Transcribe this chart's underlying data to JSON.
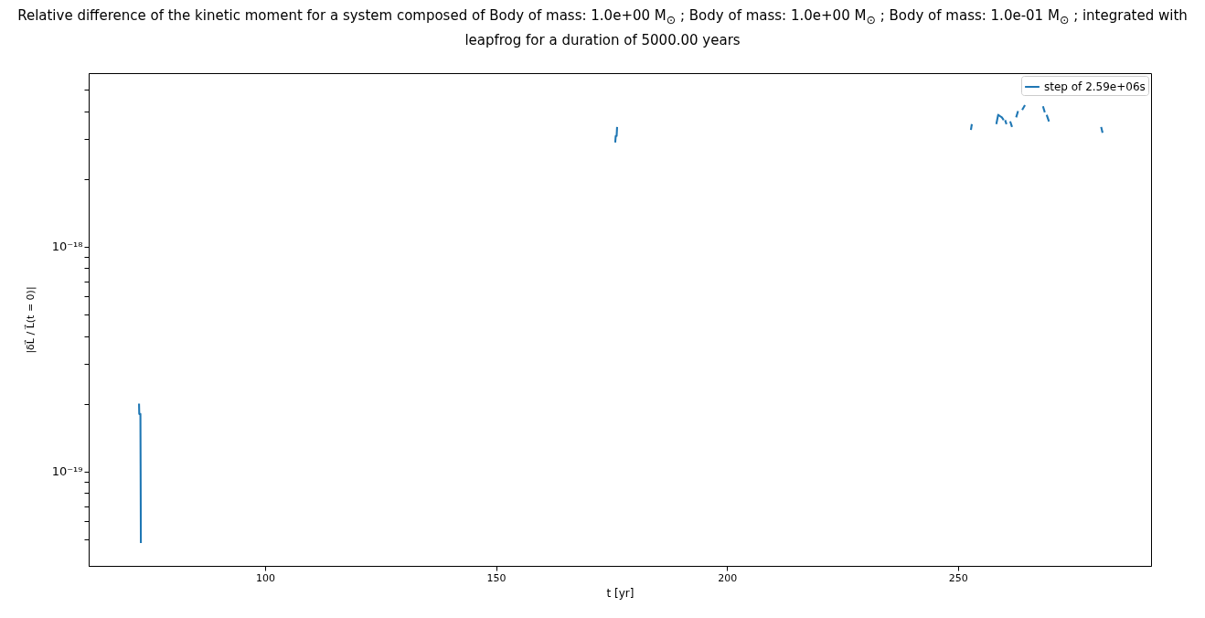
{
  "chart_data": {
    "type": "line",
    "title": "Relative difference of the kinetic moment for a system composed of Body of mass: 1.0e+00 M$_{⊙}$ ; Body of mass: 1.0e+00 M$_{⊙}$ ; Body of mass: 1.0e-01 M$_{⊙}$ ; integrated with leapfrog for a duration of 5000.00 years",
    "xlabel": "t [yr]",
    "ylabel": "|δL⃗ / L⃗(t = 0)|",
    "series": [
      {
        "name": "step of 2.59e+06s",
        "color": "#1f77b4",
        "x": [
          72.7,
          72.75,
          73.0,
          73.1,
          120,
          175.8,
          175.9,
          176.1,
          176.2,
          210,
          252.8,
          253.0,
          255,
          258.3,
          258.7,
          259.1,
          259.5,
          259.9,
          260.05,
          260.2,
          260.5,
          261.0,
          261.3,
          261.7,
          262.2,
          262.6,
          263.0,
          263.6,
          263.9,
          264.5,
          265,
          268.4,
          268.8,
          269.1,
          269.2,
          269.7,
          275,
          281.0,
          281.3
        ],
        "values": [
          2e-19,
          1.8e-19,
          1.8e-19,
          4.8e-20,
          null,
          2.9e-18,
          3.1e-18,
          3.1e-18,
          3.4e-18,
          null,
          3.3e-18,
          3.5e-18,
          null,
          3.5e-18,
          3.85e-18,
          3.8e-18,
          3.75e-18,
          3.65e-18,
          null,
          3.65e-18,
          3.5e-18,
          null,
          3.6e-18,
          3.4e-18,
          null,
          3.75e-18,
          4e-18,
          null,
          4.05e-18,
          4.25e-18,
          null,
          4.2e-18,
          3.95e-18,
          null,
          3.85e-18,
          3.6e-18,
          null,
          3.4e-18,
          3.2e-18
        ]
      }
    ],
    "xlim": [
      61.8,
      291.8
    ],
    "xticks": [
      100,
      150,
      200,
      250
    ],
    "ylim": [
      3.8e-20,
      5.9e-18
    ],
    "log": "y",
    "yticks": [
      {
        "value": 5e-20,
        "label": null
      },
      {
        "value": 6e-20,
        "label": null
      },
      {
        "value": 7e-20,
        "label": null
      },
      {
        "value": 8e-20,
        "label": null
      },
      {
        "value": 9e-20,
        "label": null
      },
      {
        "value": 1e-19,
        "label": "10⁻¹⁹"
      },
      {
        "value": 2e-19,
        "label": null
      },
      {
        "value": 3e-19,
        "label": null
      },
      {
        "value": 4e-19,
        "label": null
      },
      {
        "value": 5e-19,
        "label": null
      },
      {
        "value": 6e-19,
        "label": null
      },
      {
        "value": 7e-19,
        "label": null
      },
      {
        "value": 8e-19,
        "label": null
      },
      {
        "value": 9e-19,
        "label": null
      },
      {
        "value": 1e-18,
        "label": "10⁻¹⁸"
      },
      {
        "value": 2e-18,
        "label": null
      },
      {
        "value": 3e-18,
        "label": null
      },
      {
        "value": 4e-18,
        "label": null
      },
      {
        "value": 5e-18,
        "label": null
      }
    ],
    "legend": "top right",
    "grid": false
  }
}
